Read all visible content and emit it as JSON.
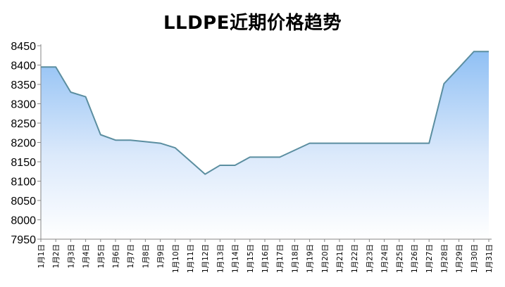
{
  "chart_data": {
    "type": "area",
    "title": "LLDPE近期价格趋势",
    "categories": [
      "1月1日",
      "1月2日",
      "1月3日",
      "1月4日",
      "1月5日",
      "1月6日",
      "1月7日",
      "1月8日",
      "1月9日",
      "1月10日",
      "1月11日",
      "1月12日",
      "1月13日",
      "1月14日",
      "1月15日",
      "1月16日",
      "1月17日",
      "1月18日",
      "1月19日",
      "1月20日",
      "1月21日",
      "1月22日",
      "1月23日",
      "1月24日",
      "1月25日",
      "1月26日",
      "1月27日",
      "1月28日",
      "1月29日",
      "1月30日",
      "1月31日"
    ],
    "values": [
      8395,
      8395,
      8330,
      8318,
      8220,
      8206,
      8206,
      8202,
      8198,
      8186,
      8152,
      8118,
      8141,
      8141,
      8162,
      8162,
      8162,
      8180,
      8198,
      8198,
      8198,
      8198,
      8198,
      8198,
      8198,
      8198,
      8198,
      8352,
      8393,
      8435,
      8435
    ],
    "yticks": [
      "8450",
      "8400",
      "8350",
      "8300",
      "8250",
      "8200",
      "8150",
      "8100",
      "8050",
      "8000",
      "7950"
    ],
    "ylim": [
      7950,
      8450
    ],
    "xlabel": "",
    "ylabel": "",
    "grid": false,
    "legend": "none",
    "colors": {
      "line": "#5b8ea0",
      "fill_top": "#90c0f4",
      "fill_bottom": "#ffffff",
      "axis": "#868686"
    }
  }
}
